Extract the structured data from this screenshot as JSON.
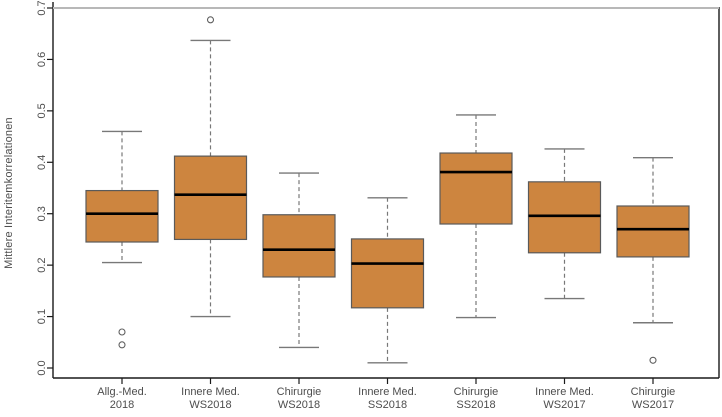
{
  "chart_data": {
    "type": "boxplot",
    "title": "",
    "xlabel": "",
    "ylabel": "Mittlere Interitemkorrelationen",
    "ylim": [
      0.0,
      0.7
    ],
    "yticks": [
      "0.0",
      "0.1",
      "0.2",
      "0.3",
      "0.4",
      "0.5",
      "0.6",
      "0.7"
    ],
    "ytick_values": [
      0.0,
      0.1,
      0.2,
      0.3,
      0.4,
      0.5,
      0.6,
      0.7
    ],
    "grid": false,
    "legend": "none",
    "whisker_line_style": "dashed",
    "colors": {
      "box_fill": "#cd853f",
      "box_border": "#5a5a5a",
      "median": "#000000",
      "whisker": "#787878",
      "outlier": "#5f5f5f",
      "axis": "#1a1a1a",
      "frame_top": "#b8b8b8",
      "tick_label": "#4d4d4d"
    },
    "boxes": [
      {
        "label_line1": "Allg.-Med.",
        "label_line2": "2018",
        "whisker_low": 0.205,
        "q1": 0.245,
        "median": 0.3,
        "q3": 0.345,
        "whisker_high": 0.46,
        "outliers": [
          0.07,
          0.045
        ]
      },
      {
        "label_line1": "Innere Med.",
        "label_line2": "WS2018",
        "whisker_low": 0.1,
        "q1": 0.25,
        "median": 0.337,
        "q3": 0.412,
        "whisker_high": 0.637,
        "outliers": [
          0.677
        ]
      },
      {
        "label_line1": "Chirurgie",
        "label_line2": "WS2018",
        "whisker_low": 0.04,
        "q1": 0.177,
        "median": 0.23,
        "q3": 0.298,
        "whisker_high": 0.379,
        "outliers": []
      },
      {
        "label_line1": "Innere Med.",
        "label_line2": "SS2018",
        "whisker_low": 0.01,
        "q1": 0.117,
        "median": 0.203,
        "q3": 0.251,
        "whisker_high": 0.331,
        "outliers": []
      },
      {
        "label_line1": "Chirurgie",
        "label_line2": "SS2018",
        "whisker_low": 0.098,
        "q1": 0.28,
        "median": 0.381,
        "q3": 0.418,
        "whisker_high": 0.492,
        "outliers": []
      },
      {
        "label_line1": "Innere Med.",
        "label_line2": "WS2017",
        "whisker_low": 0.135,
        "q1": 0.224,
        "median": 0.296,
        "q3": 0.362,
        "whisker_high": 0.426,
        "outliers": []
      },
      {
        "label_line1": "Chirurgie",
        "label_line2": "WS2017",
        "whisker_low": 0.088,
        "q1": 0.216,
        "median": 0.27,
        "q3": 0.315,
        "whisker_high": 0.409,
        "outliers": [
          0.015
        ]
      }
    ]
  }
}
